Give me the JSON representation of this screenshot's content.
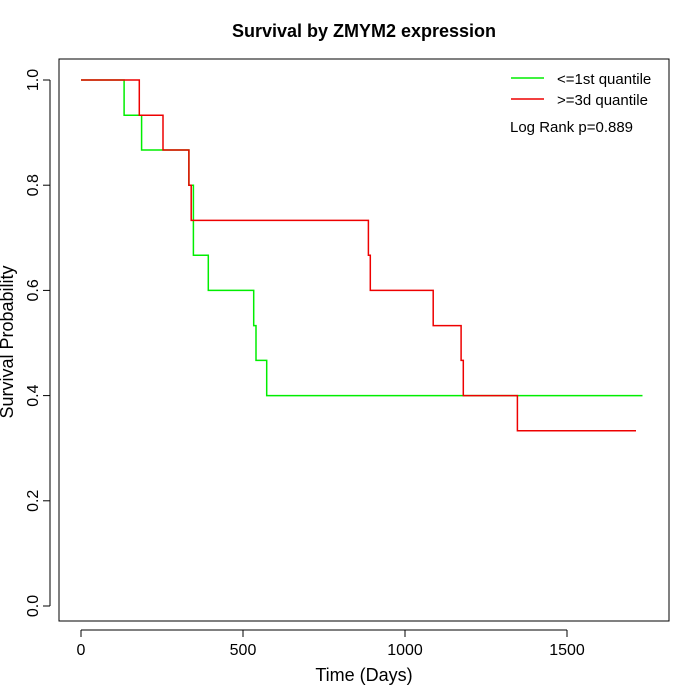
{
  "chart_data": {
    "type": "line",
    "title": "Survival by ZMYM2 expression",
    "xlabel": "Time (Days)",
    "ylabel": "Survival Probability",
    "xlim": [
      0,
      1750
    ],
    "ylim": [
      0,
      1
    ],
    "x_ticks": [
      "0",
      "500",
      "1000",
      "1500"
    ],
    "y_ticks": [
      "0.0",
      "0.2",
      "0.4",
      "0.6",
      "0.8",
      "1.0"
    ],
    "grid": false,
    "legend_position": "top-right",
    "annotation": "Log Rank p=0.889",
    "series": [
      {
        "name": "<=1st quantile",
        "color": "#00ee00",
        "step": true,
        "points": [
          [
            0,
            1.0
          ],
          [
            133,
            1.0
          ],
          [
            133,
            0.933
          ],
          [
            187,
            0.933
          ],
          [
            187,
            0.867
          ],
          [
            333,
            0.867
          ],
          [
            333,
            0.8
          ],
          [
            347,
            0.8
          ],
          [
            347,
            0.667
          ],
          [
            393,
            0.667
          ],
          [
            393,
            0.6
          ],
          [
            533,
            0.6
          ],
          [
            533,
            0.533
          ],
          [
            540,
            0.533
          ],
          [
            540,
            0.467
          ],
          [
            573,
            0.467
          ],
          [
            573,
            0.4
          ],
          [
            1733,
            0.4
          ]
        ]
      },
      {
        "name": ">=3d quantile",
        "color": "#ee0000",
        "step": true,
        "points": [
          [
            0,
            1.0
          ],
          [
            180,
            1.0
          ],
          [
            180,
            0.933
          ],
          [
            253,
            0.933
          ],
          [
            253,
            0.867
          ],
          [
            333,
            0.867
          ],
          [
            333,
            0.8
          ],
          [
            340,
            0.8
          ],
          [
            340,
            0.733
          ],
          [
            887,
            0.733
          ],
          [
            887,
            0.667
          ],
          [
            893,
            0.667
          ],
          [
            893,
            0.6
          ],
          [
            1087,
            0.6
          ],
          [
            1087,
            0.533
          ],
          [
            1173,
            0.533
          ],
          [
            1173,
            0.467
          ],
          [
            1180,
            0.467
          ],
          [
            1180,
            0.4
          ],
          [
            1347,
            0.4
          ],
          [
            1347,
            0.333
          ],
          [
            1713,
            0.333
          ]
        ]
      }
    ]
  }
}
